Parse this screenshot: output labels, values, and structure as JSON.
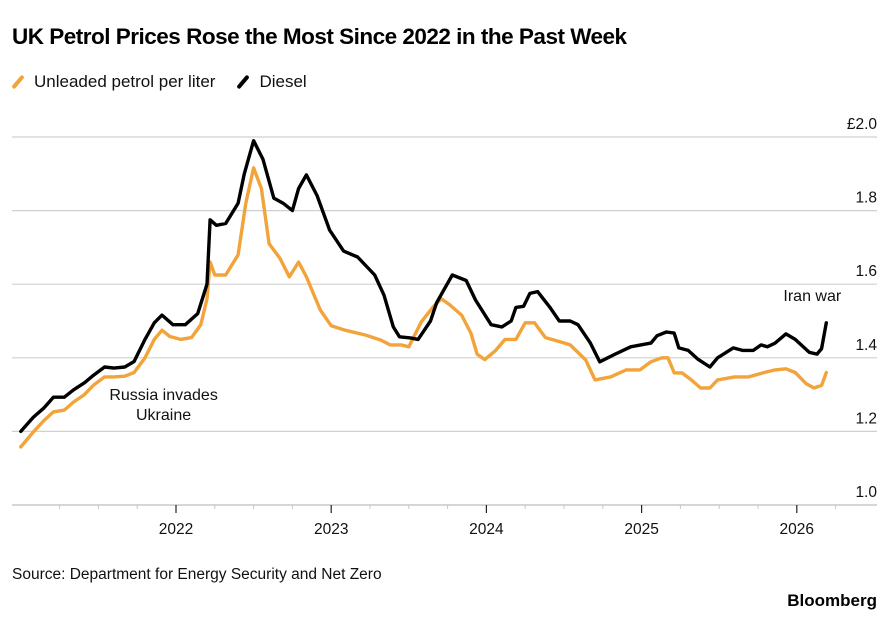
{
  "header": {
    "title": "UK Petrol Prices Rose the Most Since 2022 in the Past Week"
  },
  "footer": {
    "source": "Source: Department for Energy Security and Net Zero",
    "brand": "Bloomberg"
  },
  "chart_data": {
    "type": "line",
    "title": "UK Petrol Prices Rose the Most Since 2022 in the Past Week",
    "xlabel": "",
    "ylabel": "",
    "y_unit_prefix": "£",
    "ylim": [
      1.0,
      2.0
    ],
    "xlim": [
      2020.94,
      2026.44
    ],
    "grid": true,
    "legend_position": "top-left",
    "y_ticks": [
      {
        "value": 2.0,
        "label": "£2.0"
      },
      {
        "value": 1.8,
        "label": "1.8"
      },
      {
        "value": 1.6,
        "label": "1.6"
      },
      {
        "value": 1.4,
        "label": "1.4"
      },
      {
        "value": 1.2,
        "label": "1.2"
      },
      {
        "value": 1.0,
        "label": "1.0"
      }
    ],
    "x_ticks": [
      {
        "value": 2022,
        "label": "2022"
      },
      {
        "value": 2023,
        "label": "2023"
      },
      {
        "value": 2024,
        "label": "2024"
      },
      {
        "value": 2025,
        "label": "2025"
      },
      {
        "value": 2026,
        "label": "2026"
      }
    ],
    "x_minor_ticks": [
      2021.25,
      2021.5,
      2021.75,
      2022.25,
      2022.5,
      2022.75,
      2023.25,
      2023.5,
      2023.75,
      2024.25,
      2024.5,
      2024.75,
      2025.25,
      2025.5,
      2025.75,
      2026.25
    ],
    "annotations": [
      {
        "text_lines": [
          "Russia invades",
          "Ukraine"
        ],
        "x": 2021.92,
        "y": 1.285
      },
      {
        "text_lines": [
          "Iran war"
        ],
        "x": 2026.1,
        "y": 1.555
      }
    ],
    "series": [
      {
        "name": "Unleaded petrol per liter",
        "color": "#F2A33A",
        "points": [
          [
            2021.0,
            1.158
          ],
          [
            2021.08,
            1.198
          ],
          [
            2021.15,
            1.23
          ],
          [
            2021.21,
            1.253
          ],
          [
            2021.28,
            1.258
          ],
          [
            2021.34,
            1.28
          ],
          [
            2021.41,
            1.3
          ],
          [
            2021.47,
            1.326
          ],
          [
            2021.54,
            1.348
          ],
          [
            2021.6,
            1.348
          ],
          [
            2021.67,
            1.35
          ],
          [
            2021.73,
            1.36
          ],
          [
            2021.8,
            1.4
          ],
          [
            2021.86,
            1.45
          ],
          [
            2021.91,
            1.475
          ],
          [
            2021.96,
            1.458
          ],
          [
            2022.03,
            1.45
          ],
          [
            2022.1,
            1.455
          ],
          [
            2022.16,
            1.49
          ],
          [
            2022.2,
            1.56
          ],
          [
            2022.22,
            1.66
          ],
          [
            2022.25,
            1.625
          ],
          [
            2022.32,
            1.625
          ],
          [
            2022.4,
            1.68
          ],
          [
            2022.45,
            1.82
          ],
          [
            2022.5,
            1.916
          ],
          [
            2022.55,
            1.86
          ],
          [
            2022.6,
            1.71
          ],
          [
            2022.67,
            1.67
          ],
          [
            2022.73,
            1.62
          ],
          [
            2022.79,
            1.66
          ],
          [
            2022.84,
            1.62
          ],
          [
            2022.93,
            1.53
          ],
          [
            2023.0,
            1.487
          ],
          [
            2023.09,
            1.475
          ],
          [
            2023.22,
            1.462
          ],
          [
            2023.32,
            1.448
          ],
          [
            2023.38,
            1.435
          ],
          [
            2023.45,
            1.435
          ],
          [
            2023.5,
            1.43
          ],
          [
            2023.58,
            1.497
          ],
          [
            2023.66,
            1.54
          ],
          [
            2023.71,
            1.56
          ],
          [
            2023.76,
            1.545
          ],
          [
            2023.84,
            1.516
          ],
          [
            2023.9,
            1.467
          ],
          [
            2023.94,
            1.41
          ],
          [
            2023.99,
            1.395
          ],
          [
            2024.06,
            1.42
          ],
          [
            2024.12,
            1.45
          ],
          [
            2024.19,
            1.45
          ],
          [
            2024.25,
            1.495
          ],
          [
            2024.31,
            1.495
          ],
          [
            2024.38,
            1.455
          ],
          [
            2024.48,
            1.443
          ],
          [
            2024.54,
            1.435
          ],
          [
            2024.64,
            1.394
          ],
          [
            2024.7,
            1.34
          ],
          [
            2024.8,
            1.348
          ],
          [
            2024.9,
            1.367
          ],
          [
            2024.99,
            1.367
          ],
          [
            2025.06,
            1.389
          ],
          [
            2025.13,
            1.4
          ],
          [
            2025.17,
            1.4
          ],
          [
            2025.21,
            1.359
          ],
          [
            2025.26,
            1.359
          ],
          [
            2025.32,
            1.34
          ],
          [
            2025.38,
            1.318
          ],
          [
            2025.44,
            1.318
          ],
          [
            2025.49,
            1.34
          ],
          [
            2025.6,
            1.348
          ],
          [
            2025.69,
            1.348
          ],
          [
            2025.79,
            1.36
          ],
          [
            2025.86,
            1.367
          ],
          [
            2025.93,
            1.37
          ],
          [
            2025.99,
            1.36
          ],
          [
            2026.06,
            1.33
          ],
          [
            2026.11,
            1.318
          ],
          [
            2026.16,
            1.325
          ],
          [
            2026.19,
            1.36
          ]
        ]
      },
      {
        "name": "Diesel",
        "color": "#000000",
        "points": [
          [
            2021.0,
            1.2
          ],
          [
            2021.08,
            1.238
          ],
          [
            2021.15,
            1.264
          ],
          [
            2021.21,
            1.293
          ],
          [
            2021.28,
            1.293
          ],
          [
            2021.34,
            1.313
          ],
          [
            2021.41,
            1.332
          ],
          [
            2021.47,
            1.353
          ],
          [
            2021.54,
            1.375
          ],
          [
            2021.6,
            1.372
          ],
          [
            2021.67,
            1.375
          ],
          [
            2021.73,
            1.39
          ],
          [
            2021.8,
            1.45
          ],
          [
            2021.86,
            1.495
          ],
          [
            2021.91,
            1.516
          ],
          [
            2021.98,
            1.49
          ],
          [
            2022.06,
            1.49
          ],
          [
            2022.14,
            1.52
          ],
          [
            2022.2,
            1.6
          ],
          [
            2022.22,
            1.775
          ],
          [
            2022.26,
            1.76
          ],
          [
            2022.32,
            1.765
          ],
          [
            2022.4,
            1.82
          ],
          [
            2022.44,
            1.9
          ],
          [
            2022.5,
            1.99
          ],
          [
            2022.56,
            1.94
          ],
          [
            2022.63,
            1.834
          ],
          [
            2022.69,
            1.82
          ],
          [
            2022.75,
            1.8
          ],
          [
            2022.79,
            1.86
          ],
          [
            2022.84,
            1.897
          ],
          [
            2022.91,
            1.84
          ],
          [
            2022.99,
            1.747
          ],
          [
            2023.08,
            1.69
          ],
          [
            2023.17,
            1.674
          ],
          [
            2023.28,
            1.625
          ],
          [
            2023.34,
            1.57
          ],
          [
            2023.4,
            1.484
          ],
          [
            2023.44,
            1.457
          ],
          [
            2023.51,
            1.454
          ],
          [
            2023.56,
            1.45
          ],
          [
            2023.64,
            1.5
          ],
          [
            2023.68,
            1.55
          ],
          [
            2023.78,
            1.625
          ],
          [
            2023.87,
            1.61
          ],
          [
            2023.93,
            1.557
          ],
          [
            2024.03,
            1.49
          ],
          [
            2024.1,
            1.484
          ],
          [
            2024.16,
            1.5
          ],
          [
            2024.19,
            1.537
          ],
          [
            2024.24,
            1.54
          ],
          [
            2024.28,
            1.575
          ],
          [
            2024.33,
            1.58
          ],
          [
            2024.41,
            1.537
          ],
          [
            2024.47,
            1.5
          ],
          [
            2024.54,
            1.5
          ],
          [
            2024.59,
            1.49
          ],
          [
            2024.67,
            1.44
          ],
          [
            2024.73,
            1.389
          ],
          [
            2024.83,
            1.41
          ],
          [
            2024.93,
            1.43
          ],
          [
            2025.06,
            1.44
          ],
          [
            2025.1,
            1.46
          ],
          [
            2025.16,
            1.47
          ],
          [
            2025.21,
            1.467
          ],
          [
            2025.24,
            1.427
          ],
          [
            2025.3,
            1.42
          ],
          [
            2025.36,
            1.397
          ],
          [
            2025.44,
            1.375
          ],
          [
            2025.49,
            1.4
          ],
          [
            2025.59,
            1.427
          ],
          [
            2025.65,
            1.42
          ],
          [
            2025.72,
            1.42
          ],
          [
            2025.77,
            1.435
          ],
          [
            2025.81,
            1.43
          ],
          [
            2025.86,
            1.44
          ],
          [
            2025.93,
            1.465
          ],
          [
            2025.99,
            1.45
          ],
          [
            2026.08,
            1.415
          ],
          [
            2026.13,
            1.41
          ],
          [
            2026.16,
            1.425
          ],
          [
            2026.19,
            1.495
          ]
        ]
      }
    ]
  }
}
